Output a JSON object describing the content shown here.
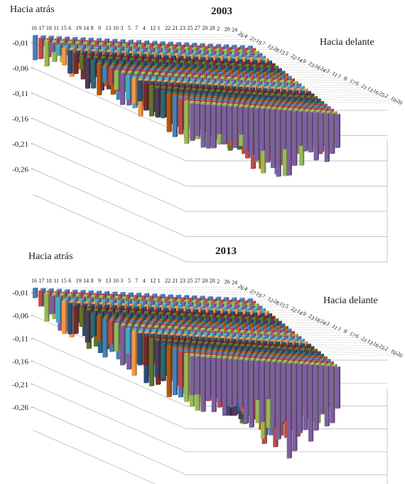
{
  "chart_data": [
    {
      "type": "bar3d",
      "title": "2003",
      "back_label": "Hacia atrás",
      "front_label": "Hacia delante",
      "yticks": [
        "-0,01",
        "-0,06",
        "-0,11",
        "-0,16",
        "-0,21",
        "-0,26"
      ],
      "ylim": [
        -0.31,
        0.0
      ],
      "x_categories": [
        "16",
        "17",
        "18",
        "11",
        "15",
        "6",
        "19",
        "14",
        "8",
        "9",
        "13",
        "10",
        "3",
        "5",
        "7",
        "4",
        "12",
        "1",
        "22",
        "21",
        "23",
        "25",
        "27",
        "20",
        "28",
        "2",
        "26",
        "24"
      ],
      "depth_categories": [
        "26",
        "4",
        "27",
        "19",
        "7",
        "12",
        "28",
        "15",
        "5",
        "22",
        "14",
        "9",
        "23",
        "18",
        "24",
        "3",
        "11",
        "1",
        "8",
        "17",
        "6",
        "21",
        "13",
        "16",
        "25",
        "2",
        "10",
        "20"
      ],
      "grid": true,
      "legend": "none"
    },
    {
      "type": "bar3d",
      "title": "2013",
      "back_label": "Hacia atrás",
      "front_label": "Hacia delante",
      "yticks": [
        "-0,01",
        "-0,06",
        "-0,11",
        "-0,16",
        "-0,21",
        "-0,26"
      ],
      "ylim": [
        -0.31,
        0.0
      ],
      "x_categories": [
        "16",
        "17",
        "18",
        "11",
        "15",
        "6",
        "19",
        "14",
        "8",
        "9",
        "13",
        "10",
        "3",
        "5",
        "7",
        "4",
        "12",
        "1",
        "22",
        "21",
        "23",
        "25",
        "27",
        "20",
        "28",
        "2",
        "26",
        "24"
      ],
      "depth_categories": [
        "26",
        "4",
        "27",
        "19",
        "7",
        "12",
        "28",
        "15",
        "5",
        "22",
        "14",
        "9",
        "23",
        "18",
        "24",
        "3",
        "11",
        "1",
        "8",
        "17",
        "6",
        "21",
        "13",
        "16",
        "25",
        "2",
        "10",
        "20"
      ],
      "grid": true,
      "legend": "none"
    }
  ],
  "colors": {
    "series": [
      "#4a7ebb",
      "#be4b48",
      "#98b954",
      "#7d60a0",
      "#46aac5",
      "#f79646",
      "#2c4d75",
      "#772c2a",
      "#5f7530",
      "#4d3b62",
      "#276a7c",
      "#b65708"
    ],
    "grid": "#b0b0b0",
    "wall": "#9a9a9a"
  }
}
